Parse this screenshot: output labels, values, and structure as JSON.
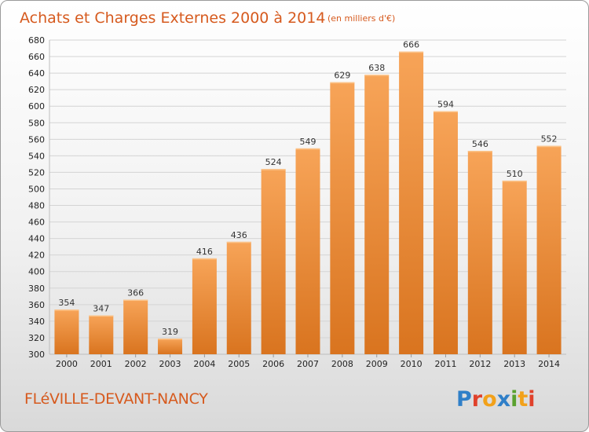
{
  "chart_data": {
    "type": "bar",
    "title": "Achats et Charges Externes 2000 à 2014",
    "subtitle": "(en milliers d'€)",
    "categories": [
      "2000",
      "2001",
      "2002",
      "2003",
      "2004",
      "2005",
      "2006",
      "2007",
      "2008",
      "2009",
      "2010",
      "2011",
      "2012",
      "2013",
      "2014"
    ],
    "values": [
      354,
      347,
      366,
      319,
      416,
      436,
      524,
      549,
      629,
      638,
      666,
      594,
      546,
      510,
      552
    ],
    "ylim": [
      300,
      680
    ],
    "yticks": [
      300,
      320,
      340,
      360,
      380,
      400,
      420,
      440,
      460,
      480,
      500,
      520,
      540,
      560,
      580,
      600,
      620,
      640,
      660,
      680
    ],
    "grid": true,
    "legend": "none",
    "colors": {
      "bar_top": "#f7a458",
      "bar_bottom": "#d9741f",
      "grid": "#d4d4d4"
    }
  },
  "footer": {
    "commune": "FLéVILLE-DEVANT-NANCY",
    "logo_letters": [
      {
        "ch": "P",
        "color": "#2f7fc8"
      },
      {
        "ch": "r",
        "color": "#e0412b"
      },
      {
        "ch": "o",
        "color": "#f2a11a"
      },
      {
        "ch": "x",
        "color": "#2f7fc8"
      },
      {
        "ch": "i",
        "color": "#5aa12e"
      },
      {
        "ch": "t",
        "color": "#f2a11a"
      },
      {
        "ch": "i",
        "color": "#e0412b"
      }
    ]
  }
}
